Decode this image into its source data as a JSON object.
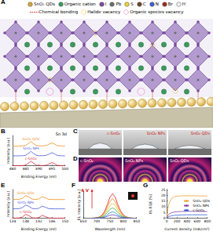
{
  "schematic": {
    "panel": "A",
    "legend": [
      {
        "label": "SnO₂ QDs",
        "color": "#d4a73a",
        "marker": "circle"
      },
      {
        "label": "Organic cation",
        "color": "#3c9a5c",
        "marker": "circle"
      },
      {
        "label": "I",
        "color": "#7b4aa0",
        "marker": "circle"
      },
      {
        "label": "Pb",
        "color": "#6d6d6d",
        "marker": "circle"
      },
      {
        "label": "S",
        "color": "#e6d23c",
        "marker": "circle"
      },
      {
        "label": "C",
        "color": "#6a4526",
        "marker": "circle"
      },
      {
        "label": "N",
        "color": "#3b5fd0",
        "marker": "circle"
      },
      {
        "label": "Br",
        "color": "#9a2f1e",
        "marker": "circle"
      },
      {
        "label": "H",
        "color": "#f2f2f2",
        "marker": "circle"
      }
    ],
    "legend2": [
      {
        "label": "Chemical bonding",
        "color": "#d62020",
        "marker": "dashed-line"
      },
      {
        "label": "Halide vacancy",
        "color": "#e8b820",
        "marker": "dashed-circle"
      },
      {
        "label": "Organic species vacancy",
        "color": "#e060c0",
        "marker": "dashed-circle"
      }
    ]
  },
  "chart_data": [
    {
      "panel": "B",
      "type": "line",
      "x_label": "Binding Energy (eV)",
      "y_label": "Intensity (a.u.)",
      "annotations": [
        "Sn 3d"
      ],
      "legend": "inline",
      "tick_labels": "x",
      "x": [
        480,
        481,
        482,
        483,
        484,
        485,
        486,
        487,
        488,
        489,
        490,
        491,
        492,
        493,
        494,
        495,
        496,
        497,
        498,
        499,
        500
      ],
      "series": [
        {
          "name": "SnO₂ QDs",
          "color": "#f08c1e",
          "values": [
            2.61,
            2.61,
            2.61,
            2.62,
            2.63,
            2.69,
            2.93,
            3.2,
            2.93,
            2.69,
            2.64,
            2.63,
            2.64,
            2.69,
            2.87,
            3.02,
            2.87,
            2.67,
            2.63,
            2.62,
            2.61
          ]
        },
        {
          "name": "SnO₂ NPs",
          "color": "#4a5ad8",
          "values": [
            1.31,
            1.31,
            1.31,
            1.32,
            1.33,
            1.39,
            1.63,
            1.9,
            1.63,
            1.39,
            1.34,
            1.33,
            1.34,
            1.39,
            1.57,
            1.72,
            1.57,
            1.37,
            1.33,
            1.32,
            1.31
          ]
        },
        {
          "name": "c-SnO₂",
          "color": "#d8283c",
          "values": [
            0.01,
            0.01,
            0.01,
            0.02,
            0.03,
            0.09,
            0.33,
            0.6,
            0.33,
            0.09,
            0.04,
            0.03,
            0.04,
            0.09,
            0.27,
            0.42,
            0.27,
            0.07,
            0.03,
            0.02,
            0.01
          ]
        }
      ],
      "xlim": [
        480,
        500
      ],
      "xticks": [
        480,
        485,
        490,
        495,
        500
      ],
      "ylim": [
        0,
        4
      ]
    },
    {
      "panel": "E",
      "type": "line",
      "x_label": "Binding Energy (eV)",
      "y_label": "Intensity (a.u.)",
      "legend": "inline",
      "tick_labels": "x",
      "x": [
        134,
        135,
        136,
        137,
        138,
        139,
        140,
        141,
        142,
        143,
        144,
        145,
        146,
        147,
        148,
        149,
        150
      ],
      "series": [
        {
          "name": "SnO₂ QDs",
          "color": "#f08c1e",
          "values": [
            2.61,
            2.62,
            2.64,
            2.78,
            3.14,
            2.96,
            2.66,
            2.62,
            2.69,
            2.99,
            2.84,
            2.64,
            2.62,
            2.61,
            2.61,
            2.61,
            2.61
          ]
        },
        {
          "name": "SnO₂ NPs",
          "color": "#4a5ad8",
          "values": [
            1.31,
            1.32,
            1.34,
            1.48,
            1.84,
            1.66,
            1.36,
            1.32,
            1.39,
            1.69,
            1.54,
            1.34,
            1.32,
            1.31,
            1.31,
            1.31,
            1.31
          ]
        },
        {
          "name": "c-SnO₂",
          "color": "#d8283c",
          "values": [
            0.01,
            0.02,
            0.04,
            0.18,
            0.54,
            0.36,
            0.06,
            0.02,
            0.09,
            0.39,
            0.24,
            0.04,
            0.02,
            0.01,
            0.01,
            0.01,
            0.01
          ]
        }
      ],
      "xlim": [
        134,
        150
      ],
      "xticks": [
        134,
        138,
        142,
        146,
        150
      ],
      "ylim": [
        0,
        4
      ]
    },
    {
      "panel": "F",
      "type": "line",
      "x_label": "Wavelength (nm)",
      "y_label": "EL intensity (a.u.)",
      "annotations": [
        "4 V"
      ],
      "tick_labels": "x",
      "x": [
        680,
        690,
        700,
        710,
        720,
        730,
        740,
        750,
        760,
        770,
        780,
        790,
        800,
        810,
        820,
        830,
        840
      ],
      "series": [
        {
          "color": "#e02020",
          "values": [
            0,
            0.01,
            0.02,
            0.05,
            0.12,
            0.28,
            0.55,
            0.85,
            1,
            0.85,
            0.55,
            0.3,
            0.14,
            0.06,
            0.03,
            0.01,
            0
          ]
        },
        {
          "color": "#f08020",
          "values": [
            0,
            0.01,
            0.02,
            0.04,
            0.1,
            0.22,
            0.44,
            0.68,
            0.8,
            0.68,
            0.44,
            0.24,
            0.11,
            0.05,
            0.02,
            0.01,
            0
          ]
        },
        {
          "color": "#d8c020",
          "values": [
            0,
            0.01,
            0.01,
            0.03,
            0.07,
            0.17,
            0.33,
            0.51,
            0.6,
            0.51,
            0.33,
            0.18,
            0.08,
            0.04,
            0.02,
            0.01,
            0
          ]
        },
        {
          "color": "#40b040",
          "values": [
            0,
            0,
            0.01,
            0.02,
            0.05,
            0.12,
            0.23,
            0.36,
            0.42,
            0.36,
            0.23,
            0.13,
            0.06,
            0.03,
            0.01,
            0,
            0
          ]
        },
        {
          "color": "#2090d0",
          "values": [
            0,
            0,
            0.01,
            0.01,
            0.03,
            0.07,
            0.14,
            0.22,
            0.26,
            0.22,
            0.14,
            0.08,
            0.04,
            0.02,
            0.01,
            0,
            0
          ]
        },
        {
          "color": "#6040c0",
          "values": [
            0,
            0,
            0,
            0.01,
            0.02,
            0.04,
            0.08,
            0.12,
            0.14,
            0.12,
            0.08,
            0.04,
            0.02,
            0.01,
            0,
            0,
            0
          ]
        }
      ],
      "xlim": [
        650,
        850
      ],
      "xticks": [
        650,
        700,
        750,
        800,
        850
      ],
      "ylim": [
        0,
        1.1
      ]
    },
    {
      "panel": "G",
      "type": "line",
      "x_label": "Current density (mA/cm²)",
      "y_label": "EL EQE (%)",
      "legend": "right",
      "x": [
        0,
        25,
        50,
        100,
        150,
        200,
        300,
        400,
        500,
        600,
        700,
        800
      ],
      "series": [
        {
          "name": "SnO₂ QDs",
          "color": "#f0a030",
          "values": [
            0,
            8.5,
            13.5,
            17.5,
            18.8,
            19.3,
            19.5,
            19.6,
            19.6,
            19.5,
            19.5,
            19.4
          ]
        },
        {
          "name": "SnO₂ NPs",
          "color": "#8a3ab0",
          "values": [
            0,
            2.5,
            3.8,
            4.9,
            5.4,
            5.7,
            5.9,
            6,
            6,
            6,
            5.9,
            5.9
          ]
        },
        {
          "name": "c-SnO₂",
          "color": "#3060d0",
          "values": [
            0,
            1,
            1.6,
            2.2,
            2.5,
            2.7,
            2.9,
            3,
            3,
            3,
            3,
            3
          ]
        }
      ],
      "xlim": [
        0,
        800
      ],
      "xticks": [
        0,
        200,
        400,
        600,
        800
      ],
      "ylim": [
        0,
        25
      ],
      "yticks": [
        0,
        5,
        10,
        15,
        20,
        25
      ]
    }
  ],
  "contact_angle": {
    "panel": "C",
    "labels": [
      "c-SnO₂",
      "SnO₂ NPs",
      "SnO₂ QDs"
    ]
  },
  "giwaxs": {
    "panel": "D",
    "labels": [
      "c-SnO₂",
      "SnO₂ NPs",
      "SnO₂ QDs"
    ]
  }
}
